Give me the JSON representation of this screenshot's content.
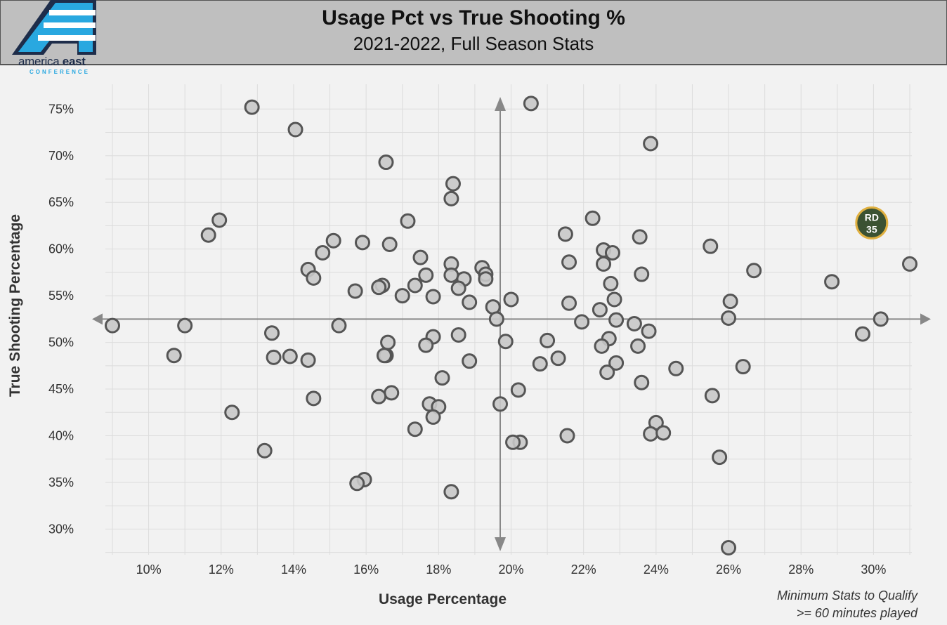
{
  "header": {
    "title": "Usage Pct vs True Shooting %",
    "subtitle": "2021-2022, Full Season Stats",
    "logo_line1_a": "america ",
    "logo_line1_b": "east",
    "logo_line2": "CONFERENCE"
  },
  "note": {
    "line1": "Minimum Stats to Qualify",
    "line2": ">= 60 minutes played"
  },
  "colors": {
    "point_fill": "#c8c8c8",
    "point_stroke": "#555555",
    "highlight_fill": "#3b5232",
    "highlight_stroke": "#e0b040",
    "header_bg": "#bfbfbf"
  },
  "chart_data": {
    "type": "scatter",
    "title": "Usage Pct vs True Shooting %",
    "subtitle": "2021-2022, Full Season Stats",
    "xlabel": "Usage Percentage",
    "ylabel": "True Shooting Percentage",
    "xlim": [
      9.0,
      31.0
    ],
    "ylim": [
      28.0,
      76.0
    ],
    "x_ticks": [
      10,
      12,
      14,
      16,
      18,
      20,
      22,
      24,
      26,
      28,
      30
    ],
    "y_ticks": [
      30,
      35,
      40,
      45,
      50,
      55,
      60,
      65,
      70,
      75
    ],
    "reference_lines": {
      "x": 19.7,
      "y": 52.5
    },
    "grid": true,
    "points": [
      [
        12.85,
        75.2
      ],
      [
        20.55,
        75.6
      ],
      [
        14.05,
        72.8
      ],
      [
        23.85,
        71.3
      ],
      [
        16.55,
        69.3
      ],
      [
        18.4,
        67.0
      ],
      [
        18.35,
        65.4
      ],
      [
        22.25,
        63.3
      ],
      [
        11.95,
        63.1
      ],
      [
        17.15,
        63.0
      ],
      [
        11.65,
        61.5
      ],
      [
        21.5,
        61.6
      ],
      [
        23.55,
        61.3
      ],
      [
        15.1,
        60.9
      ],
      [
        15.9,
        60.7
      ],
      [
        16.65,
        60.5
      ],
      [
        25.5,
        60.3
      ],
      [
        22.55,
        59.9
      ],
      [
        22.8,
        59.6
      ],
      [
        14.8,
        59.6
      ],
      [
        17.5,
        59.1
      ],
      [
        21.6,
        58.6
      ],
      [
        22.55,
        58.4
      ],
      [
        18.35,
        58.4
      ],
      [
        19.2,
        58.0
      ],
      [
        14.4,
        57.8
      ],
      [
        26.7,
        57.7
      ],
      [
        23.6,
        57.3
      ],
      [
        17.65,
        57.2
      ],
      [
        18.35,
        57.2
      ],
      [
        19.3,
        57.3
      ],
      [
        14.55,
        56.9
      ],
      [
        18.7,
        56.8
      ],
      [
        19.3,
        56.8
      ],
      [
        28.85,
        56.5
      ],
      [
        22.75,
        56.3
      ],
      [
        17.35,
        56.1
      ],
      [
        16.45,
        56.1
      ],
      [
        16.35,
        55.9
      ],
      [
        18.55,
        55.8
      ],
      [
        15.7,
        55.5
      ],
      [
        17.0,
        55.0
      ],
      [
        17.85,
        54.9
      ],
      [
        22.85,
        54.6
      ],
      [
        20.0,
        54.6
      ],
      [
        26.05,
        54.4
      ],
      [
        18.85,
        54.3
      ],
      [
        21.6,
        54.2
      ],
      [
        19.5,
        53.8
      ],
      [
        22.45,
        53.5
      ],
      [
        19.6,
        52.5
      ],
      [
        26.0,
        52.6
      ],
      [
        30.2,
        52.5
      ],
      [
        21.95,
        52.2
      ],
      [
        22.9,
        52.4
      ],
      [
        23.4,
        52.0
      ],
      [
        9.0,
        51.8
      ],
      [
        11.0,
        51.8
      ],
      [
        15.25,
        51.8
      ],
      [
        23.8,
        51.2
      ],
      [
        13.4,
        51.0
      ],
      [
        18.55,
        50.8
      ],
      [
        29.7,
        50.9
      ],
      [
        17.85,
        50.6
      ],
      [
        22.7,
        50.4
      ],
      [
        21.0,
        50.2
      ],
      [
        19.85,
        50.1
      ],
      [
        16.6,
        50.0
      ],
      [
        17.65,
        49.7
      ],
      [
        22.5,
        49.6
      ],
      [
        23.5,
        49.6
      ],
      [
        16.55,
        48.6
      ],
      [
        16.5,
        48.6
      ],
      [
        10.7,
        48.6
      ],
      [
        13.45,
        48.4
      ],
      [
        13.9,
        48.5
      ],
      [
        21.3,
        48.3
      ],
      [
        14.4,
        48.1
      ],
      [
        18.85,
        48.0
      ],
      [
        22.9,
        47.8
      ],
      [
        20.8,
        47.7
      ],
      [
        26.4,
        47.4
      ],
      [
        24.55,
        47.2
      ],
      [
        22.65,
        46.8
      ],
      [
        18.1,
        46.2
      ],
      [
        23.6,
        45.7
      ],
      [
        20.2,
        44.9
      ],
      [
        16.7,
        44.6
      ],
      [
        25.55,
        44.3
      ],
      [
        16.35,
        44.2
      ],
      [
        14.55,
        44.0
      ],
      [
        19.7,
        43.4
      ],
      [
        17.75,
        43.4
      ],
      [
        18.0,
        43.1
      ],
      [
        12.3,
        42.5
      ],
      [
        17.85,
        42.0
      ],
      [
        24.0,
        41.4
      ],
      [
        17.35,
        40.7
      ],
      [
        23.85,
        40.2
      ],
      [
        24.2,
        40.3
      ],
      [
        21.55,
        40.0
      ],
      [
        20.25,
        39.3
      ],
      [
        20.05,
        39.3
      ],
      [
        13.2,
        38.4
      ],
      [
        25.75,
        37.7
      ],
      [
        15.95,
        35.3
      ],
      [
        15.75,
        34.9
      ],
      [
        18.35,
        34.0
      ],
      [
        26.0,
        28.0
      ],
      [
        31.0,
        58.4
      ]
    ],
    "highlight": {
      "label_line1": "RD",
      "label_line2": "35",
      "x": 29.95,
      "y": 62.8
    }
  }
}
